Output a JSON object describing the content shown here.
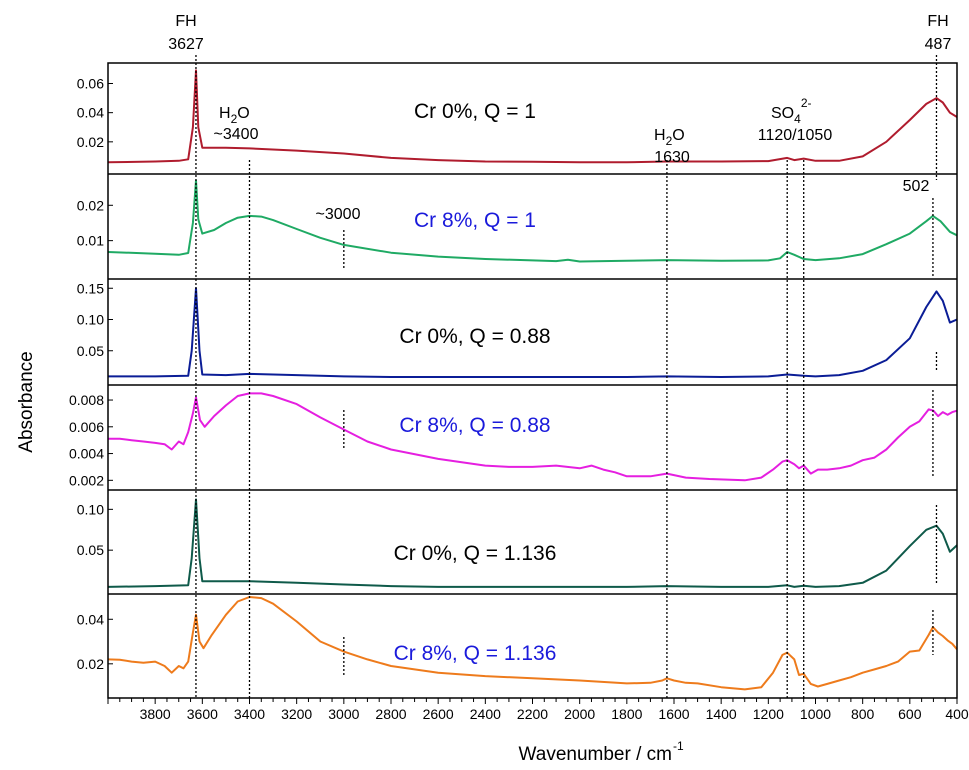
{
  "chart_data": {
    "type": "line",
    "xlabel": "Wavenumber / cm",
    "xlabel_sup": "-1",
    "ylabel": "Absorbance",
    "xlim": [
      4000,
      400
    ],
    "x_reversed": true,
    "xticks": [
      3800,
      3600,
      3400,
      3200,
      3000,
      2800,
      2600,
      2400,
      2200,
      2000,
      1800,
      1600,
      1400,
      1200,
      1000,
      800,
      600,
      400
    ],
    "annotations": {
      "fh_left": {
        "top": "FH",
        "bottom": "3627"
      },
      "fh_right": {
        "top": "FH",
        "bottom": "487"
      },
      "h2o_3400": {
        "base": "H",
        "sub": "2",
        "rest": "O",
        "value": "~3400"
      },
      "h2o_1630": {
        "base": "H",
        "sub": "2",
        "rest": "O",
        "value": "1630"
      },
      "so4": {
        "base": "SO",
        "sub": "4",
        "sup": "2-",
        "value": "1120/1050"
      },
      "band_3000": "~3000",
      "band_502": "502"
    },
    "marker_lines": [
      3627,
      3400,
      3000,
      1630,
      1120,
      1050,
      502,
      487
    ],
    "series": [
      {
        "name": "Cr 0%, Q = 1",
        "color": "#b01c2e",
        "label_color": "#000000",
        "ylim": [
          0,
          0.072
        ],
        "yticks": [
          0.02,
          0.04,
          0.06
        ],
        "points": [
          [
            4000,
            0.006
          ],
          [
            3800,
            0.0065
          ],
          [
            3700,
            0.007
          ],
          [
            3660,
            0.008
          ],
          [
            3640,
            0.03
          ],
          [
            3627,
            0.069
          ],
          [
            3617,
            0.03
          ],
          [
            3600,
            0.016
          ],
          [
            3500,
            0.016
          ],
          [
            3400,
            0.0155
          ],
          [
            3200,
            0.014
          ],
          [
            3000,
            0.012
          ],
          [
            2800,
            0.009
          ],
          [
            2600,
            0.0075
          ],
          [
            2400,
            0.0065
          ],
          [
            2200,
            0.0063
          ],
          [
            2000,
            0.006
          ],
          [
            1800,
            0.006
          ],
          [
            1630,
            0.0065
          ],
          [
            1400,
            0.0065
          ],
          [
            1200,
            0.0068
          ],
          [
            1120,
            0.009
          ],
          [
            1090,
            0.0075
          ],
          [
            1050,
            0.0085
          ],
          [
            1000,
            0.007
          ],
          [
            900,
            0.007
          ],
          [
            800,
            0.01
          ],
          [
            700,
            0.02
          ],
          [
            600,
            0.035
          ],
          [
            530,
            0.046
          ],
          [
            487,
            0.05
          ],
          [
            460,
            0.047
          ],
          [
            430,
            0.04
          ],
          [
            400,
            0.037
          ]
        ]
      },
      {
        "name": "Cr 8%, Q = 1",
        "color": "#1faa64",
        "label_color": "#1a1adb",
        "ylim": [
          0,
          0.028
        ],
        "yticks": [
          0.01,
          0.02
        ],
        "points": [
          [
            4000,
            0.0068
          ],
          [
            3800,
            0.0063
          ],
          [
            3700,
            0.006
          ],
          [
            3660,
            0.0065
          ],
          [
            3640,
            0.015
          ],
          [
            3627,
            0.027
          ],
          [
            3617,
            0.016
          ],
          [
            3600,
            0.012
          ],
          [
            3550,
            0.013
          ],
          [
            3500,
            0.015
          ],
          [
            3450,
            0.0165
          ],
          [
            3400,
            0.017
          ],
          [
            3350,
            0.0168
          ],
          [
            3300,
            0.0158
          ],
          [
            3200,
            0.0133
          ],
          [
            3100,
            0.0108
          ],
          [
            3000,
            0.0088
          ],
          [
            2800,
            0.0066
          ],
          [
            2600,
            0.0055
          ],
          [
            2400,
            0.0048
          ],
          [
            2200,
            0.0044
          ],
          [
            2100,
            0.0042
          ],
          [
            2050,
            0.0046
          ],
          [
            2000,
            0.0041
          ],
          [
            1800,
            0.0043
          ],
          [
            1630,
            0.0045
          ],
          [
            1400,
            0.0043
          ],
          [
            1200,
            0.0044
          ],
          [
            1150,
            0.005
          ],
          [
            1120,
            0.0068
          ],
          [
            1090,
            0.006
          ],
          [
            1050,
            0.0048
          ],
          [
            1000,
            0.0045
          ],
          [
            900,
            0.005
          ],
          [
            800,
            0.0062
          ],
          [
            700,
            0.009
          ],
          [
            600,
            0.012
          ],
          [
            530,
            0.0155
          ],
          [
            502,
            0.017
          ],
          [
            470,
            0.0155
          ],
          [
            430,
            0.0125
          ],
          [
            400,
            0.0115
          ]
        ]
      },
      {
        "name": "Cr 0%, Q = 0.88",
        "color": "#0b1d96",
        "label_color": "#000000",
        "ylim": [
          0,
          0.16
        ],
        "yticks": [
          0.05,
          0.1,
          0.15
        ],
        "points": [
          [
            4000,
            0.009
          ],
          [
            3800,
            0.009
          ],
          [
            3660,
            0.01
          ],
          [
            3645,
            0.05
          ],
          [
            3627,
            0.15
          ],
          [
            3612,
            0.05
          ],
          [
            3600,
            0.012
          ],
          [
            3500,
            0.011
          ],
          [
            3400,
            0.013
          ],
          [
            3300,
            0.012
          ],
          [
            3200,
            0.011
          ],
          [
            3000,
            0.009
          ],
          [
            2800,
            0.008
          ],
          [
            2600,
            0.008
          ],
          [
            2400,
            0.008
          ],
          [
            2000,
            0.008
          ],
          [
            1800,
            0.008
          ],
          [
            1630,
            0.009
          ],
          [
            1400,
            0.008
          ],
          [
            1200,
            0.009
          ],
          [
            1120,
            0.012
          ],
          [
            1050,
            0.01
          ],
          [
            1000,
            0.009
          ],
          [
            900,
            0.011
          ],
          [
            800,
            0.018
          ],
          [
            700,
            0.035
          ],
          [
            600,
            0.07
          ],
          [
            530,
            0.12
          ],
          [
            487,
            0.145
          ],
          [
            460,
            0.13
          ],
          [
            430,
            0.095
          ],
          [
            400,
            0.1
          ]
        ]
      },
      {
        "name": "Cr 8%, Q = 0.88",
        "color": "#e51fe0",
        "label_color": "#1a1adb",
        "ylim": [
          0.0015,
          0.0089
        ],
        "yticks": [
          0.002,
          0.004,
          0.006,
          0.008
        ],
        "points": [
          [
            4000,
            0.0051
          ],
          [
            3950,
            0.0051
          ],
          [
            3900,
            0.005
          ],
          [
            3850,
            0.0049
          ],
          [
            3800,
            0.0048
          ],
          [
            3760,
            0.0047
          ],
          [
            3730,
            0.0043
          ],
          [
            3700,
            0.0049
          ],
          [
            3680,
            0.0047
          ],
          [
            3660,
            0.0056
          ],
          [
            3640,
            0.007
          ],
          [
            3627,
            0.0082
          ],
          [
            3610,
            0.0065
          ],
          [
            3590,
            0.006
          ],
          [
            3550,
            0.0068
          ],
          [
            3500,
            0.0076
          ],
          [
            3450,
            0.0083
          ],
          [
            3400,
            0.0085
          ],
          [
            3350,
            0.0085
          ],
          [
            3300,
            0.0083
          ],
          [
            3200,
            0.0077
          ],
          [
            3100,
            0.0067
          ],
          [
            3000,
            0.0058
          ],
          [
            2900,
            0.0049
          ],
          [
            2800,
            0.0043
          ],
          [
            2600,
            0.0036
          ],
          [
            2400,
            0.0031
          ],
          [
            2300,
            0.003
          ],
          [
            2200,
            0.003
          ],
          [
            2100,
            0.0031
          ],
          [
            2000,
            0.0029
          ],
          [
            1950,
            0.0031
          ],
          [
            1900,
            0.0028
          ],
          [
            1850,
            0.0026
          ],
          [
            1800,
            0.0023
          ],
          [
            1700,
            0.0023
          ],
          [
            1630,
            0.0025
          ],
          [
            1550,
            0.0022
          ],
          [
            1450,
            0.0021
          ],
          [
            1300,
            0.002
          ],
          [
            1230,
            0.0022
          ],
          [
            1180,
            0.0028
          ],
          [
            1140,
            0.0034
          ],
          [
            1120,
            0.0035
          ],
          [
            1090,
            0.0032
          ],
          [
            1070,
            0.0029
          ],
          [
            1050,
            0.0031
          ],
          [
            1020,
            0.0025
          ],
          [
            990,
            0.0028
          ],
          [
            950,
            0.0028
          ],
          [
            900,
            0.0029
          ],
          [
            850,
            0.0031
          ],
          [
            800,
            0.0035
          ],
          [
            750,
            0.0037
          ],
          [
            700,
            0.0043
          ],
          [
            650,
            0.0052
          ],
          [
            600,
            0.006
          ],
          [
            560,
            0.0064
          ],
          [
            520,
            0.0073
          ],
          [
            500,
            0.0072
          ],
          [
            480,
            0.0068
          ],
          [
            460,
            0.0071
          ],
          [
            440,
            0.0069
          ],
          [
            420,
            0.0071
          ],
          [
            400,
            0.0072
          ]
        ]
      },
      {
        "name": "Cr 0%, Q = 1.136",
        "color": "#0f5a4a",
        "label_color": "#000000",
        "ylim": [
          0,
          0.12
        ],
        "yticks": [
          0.05,
          0.1
        ],
        "points": [
          [
            4000,
            0.005
          ],
          [
            3800,
            0.006
          ],
          [
            3660,
            0.007
          ],
          [
            3645,
            0.04
          ],
          [
            3627,
            0.112
          ],
          [
            3612,
            0.04
          ],
          [
            3600,
            0.012
          ],
          [
            3400,
            0.012
          ],
          [
            3200,
            0.01
          ],
          [
            3000,
            0.008
          ],
          [
            2800,
            0.006
          ],
          [
            2600,
            0.005
          ],
          [
            2400,
            0.005
          ],
          [
            2000,
            0.005
          ],
          [
            1800,
            0.005
          ],
          [
            1630,
            0.006
          ],
          [
            1400,
            0.005
          ],
          [
            1200,
            0.005
          ],
          [
            1120,
            0.007
          ],
          [
            1090,
            0.005
          ],
          [
            1050,
            0.0065
          ],
          [
            1000,
            0.005
          ],
          [
            900,
            0.006
          ],
          [
            800,
            0.01
          ],
          [
            700,
            0.025
          ],
          [
            600,
            0.055
          ],
          [
            530,
            0.075
          ],
          [
            487,
            0.08
          ],
          [
            460,
            0.07
          ],
          [
            430,
            0.048
          ],
          [
            400,
            0.056
          ]
        ]
      },
      {
        "name": "Cr 8%, Q = 1.136",
        "color": "#ee7b1c",
        "label_color": "#1a1adb",
        "ylim": [
          0.006,
          0.05
        ],
        "yticks": [
          0.02,
          0.04
        ],
        "points": [
          [
            4000,
            0.022
          ],
          [
            3950,
            0.0218
          ],
          [
            3900,
            0.021
          ],
          [
            3850,
            0.0205
          ],
          [
            3800,
            0.021
          ],
          [
            3760,
            0.019
          ],
          [
            3730,
            0.016
          ],
          [
            3700,
            0.019
          ],
          [
            3680,
            0.018
          ],
          [
            3660,
            0.021
          ],
          [
            3640,
            0.034
          ],
          [
            3627,
            0.042
          ],
          [
            3612,
            0.03
          ],
          [
            3595,
            0.027
          ],
          [
            3560,
            0.033
          ],
          [
            3500,
            0.042
          ],
          [
            3450,
            0.048
          ],
          [
            3400,
            0.05
          ],
          [
            3350,
            0.0495
          ],
          [
            3300,
            0.047
          ],
          [
            3200,
            0.039
          ],
          [
            3100,
            0.03
          ],
          [
            3000,
            0.0255
          ],
          [
            2900,
            0.022
          ],
          [
            2800,
            0.019
          ],
          [
            2600,
            0.016
          ],
          [
            2400,
            0.0145
          ],
          [
            2200,
            0.0135
          ],
          [
            2000,
            0.0125
          ],
          [
            1800,
            0.0112
          ],
          [
            1700,
            0.0115
          ],
          [
            1650,
            0.0125
          ],
          [
            1630,
            0.0135
          ],
          [
            1600,
            0.0125
          ],
          [
            1550,
            0.0115
          ],
          [
            1500,
            0.0112
          ],
          [
            1400,
            0.0095
          ],
          [
            1300,
            0.0085
          ],
          [
            1230,
            0.0095
          ],
          [
            1180,
            0.016
          ],
          [
            1140,
            0.024
          ],
          [
            1120,
            0.025
          ],
          [
            1090,
            0.022
          ],
          [
            1070,
            0.015
          ],
          [
            1050,
            0.0155
          ],
          [
            1020,
            0.011
          ],
          [
            990,
            0.0098
          ],
          [
            950,
            0.011
          ],
          [
            900,
            0.0125
          ],
          [
            850,
            0.014
          ],
          [
            800,
            0.016
          ],
          [
            750,
            0.0175
          ],
          [
            700,
            0.019
          ],
          [
            650,
            0.021
          ],
          [
            600,
            0.0255
          ],
          [
            560,
            0.026
          ],
          [
            520,
            0.033
          ],
          [
            502,
            0.0365
          ],
          [
            480,
            0.034
          ],
          [
            460,
            0.0325
          ],
          [
            440,
            0.0305
          ],
          [
            420,
            0.029
          ],
          [
            400,
            0.0265
          ]
        ]
      }
    ]
  }
}
